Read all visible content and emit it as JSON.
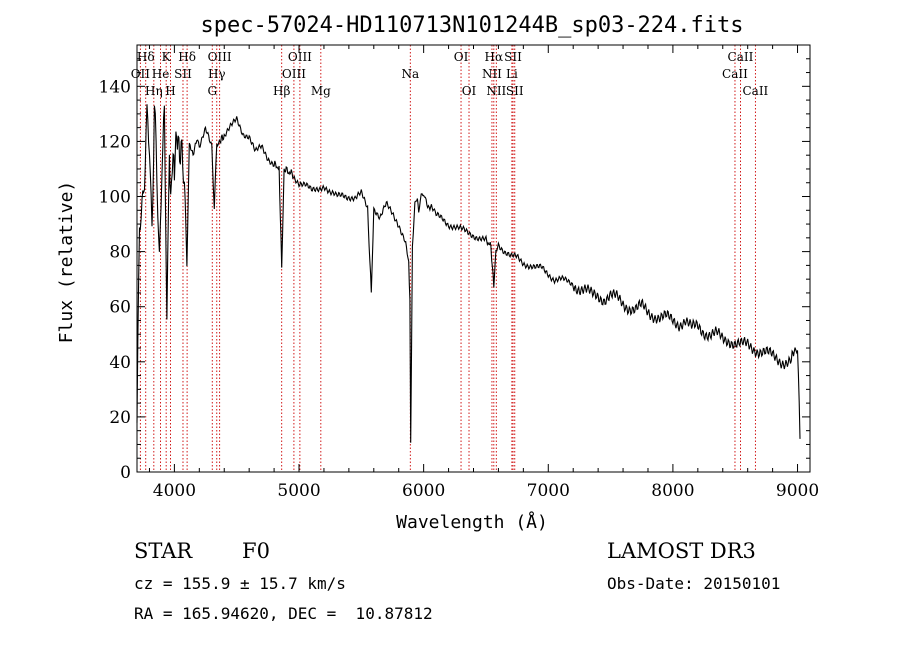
{
  "chart_data": {
    "type": "line",
    "title": "spec-57024-HD110713N101244B_sp03-224.fits",
    "xlabel": "Wavelength (Å)",
    "ylabel": "Flux (relative)",
    "xlim": [
      3700,
      9100
    ],
    "ylim": [
      0,
      155
    ],
    "xticks": [
      4000,
      5000,
      6000,
      7000,
      8000,
      9000
    ],
    "xtick_labels": [
      "4000",
      "5000",
      "6000",
      "7000",
      "8000",
      "9000"
    ],
    "yticks": [
      0,
      20,
      40,
      60,
      80,
      100,
      120,
      140
    ],
    "ytick_labels": [
      "0",
      "20",
      "40",
      "60",
      "80",
      "100",
      "120",
      "140"
    ],
    "series": [
      {
        "name": "spectrum",
        "x": [
          3700,
          3720,
          3740,
          3760,
          3780,
          3800,
          3820,
          3840,
          3860,
          3880,
          3900,
          3920,
          3940,
          3960,
          3970,
          3990,
          4000,
          4030,
          4060,
          4080,
          4100,
          4120,
          4150,
          4180,
          4200,
          4250,
          4300,
          4320,
          4340,
          4360,
          4400,
          4450,
          4500,
          4550,
          4600,
          4650,
          4700,
          4750,
          4800,
          4840,
          4861,
          4880,
          4950,
          5000,
          5050,
          5100,
          5150,
          5200,
          5250,
          5300,
          5350,
          5400,
          5450,
          5500,
          5550,
          5580,
          5600,
          5650,
          5700,
          5750,
          5800,
          5850,
          5880,
          5890,
          5896,
          5910,
          5930,
          5950,
          5960,
          5980,
          6000,
          6020,
          6050,
          6080,
          6100,
          6150,
          6200,
          6250,
          6300,
          6350,
          6400,
          6450,
          6500,
          6540,
          6563,
          6580,
          6600,
          6650,
          6700,
          6750,
          6800,
          6850,
          6900,
          6950,
          7000,
          7050,
          7100,
          7150,
          7200,
          7250,
          7300,
          7350,
          7400,
          7450,
          7500,
          7550,
          7600,
          7650,
          7700,
          7750,
          7800,
          7850,
          7900,
          7950,
          8000,
          8050,
          8100,
          8150,
          8200,
          8250,
          8300,
          8350,
          8400,
          8450,
          8500,
          8550,
          8600,
          8650,
          8700,
          8750,
          8800,
          8850,
          8900,
          8950,
          8980,
          9000,
          9020
        ],
        "y": [
          20,
          85,
          98,
          110,
          125,
          118,
          92,
          130,
          105,
          80,
          112,
          125,
          60,
          118,
          95,
          115,
          110,
          122,
          116,
          110,
          75,
          118,
          116,
          120,
          118,
          124,
          118,
          95,
          120,
          120,
          122,
          125,
          128,
          123,
          122,
          116,
          118,
          114,
          112,
          110,
          75,
          110,
          108,
          105,
          104,
          102,
          103,
          104,
          101,
          100,
          101,
          100,
          99,
          101,
          96,
          65,
          96,
          92,
          97,
          94,
          90,
          84,
          76,
          62,
          10,
          82,
          98,
          100,
          94,
          100,
          102,
          98,
          96,
          95,
          93,
          92,
          90,
          89,
          88,
          87,
          86,
          85,
          84,
          82,
          67,
          81,
          83,
          80,
          78,
          78,
          76,
          75,
          74,
          74,
          72,
          70,
          70,
          69,
          68,
          67,
          66,
          64,
          64,
          63,
          64,
          63,
          61,
          60,
          59,
          60,
          58,
          57,
          56,
          56,
          55,
          54,
          55,
          52,
          53,
          51,
          50,
          50,
          48,
          48,
          47,
          46,
          46,
          45,
          44,
          43,
          42,
          41,
          40,
          40,
          45,
          44,
          12
        ]
      }
    ],
    "line_labels": [
      {
        "label": "Hδ",
        "wl": 3770,
        "row": 1
      },
      {
        "label": "OII",
        "wl": 3727,
        "row": 2
      },
      {
        "label": "Hη",
        "wl": 3835,
        "row": 3
      },
      {
        "label": "He",
        "wl": 3889,
        "row": 2
      },
      {
        "label": "K",
        "wl": 3934,
        "row": 1
      },
      {
        "label": "SII",
        "wl": 4069,
        "row": 2
      },
      {
        "label": "H",
        "wl": 3969,
        "row": 3
      },
      {
        "label": "Hδ",
        "wl": 4102,
        "row": 1
      },
      {
        "label": "OIII",
        "wl": 4363,
        "row": 1
      },
      {
        "label": "Hγ",
        "wl": 4340,
        "row": 2
      },
      {
        "label": "G",
        "wl": 4304,
        "row": 3
      },
      {
        "label": "OIII",
        "wl": 5007,
        "row": 1
      },
      {
        "label": "OIII",
        "wl": 4959,
        "row": 2
      },
      {
        "label": "Hβ",
        "wl": 4861,
        "row": 3
      },
      {
        "label": "Mg",
        "wl": 5175,
        "row": 3
      },
      {
        "label": "Na",
        "wl": 5893,
        "row": 2
      },
      {
        "label": "OI",
        "wl": 6300,
        "row": 1
      },
      {
        "label": "OI",
        "wl": 6364,
        "row": 3
      },
      {
        "label": "Hα",
        "wl": 6563,
        "row": 1
      },
      {
        "label": "NII",
        "wl": 6548,
        "row": 2
      },
      {
        "label": "NII",
        "wl": 6583,
        "row": 3
      },
      {
        "label": "SII",
        "wl": 6717,
        "row": 1
      },
      {
        "label": "Li",
        "wl": 6708,
        "row": 2
      },
      {
        "label": "SII",
        "wl": 6731,
        "row": 3
      },
      {
        "label": "CaII",
        "wl": 8542,
        "row": 1
      },
      {
        "label": "CaII",
        "wl": 8498,
        "row": 2
      },
      {
        "label": "CaII",
        "wl": 8662,
        "row": 3
      }
    ],
    "line_marker_color": "#cc0000",
    "curve_color": "#000000"
  },
  "info": {
    "object_class": "STAR",
    "subclass": "F0",
    "survey": "LAMOST DR3",
    "redshift": "cz = 155.9 ± 15.7 km/s",
    "obs_date": "Obs-Date: 20150101",
    "coords": "RA = 165.94620, DEC =  10.87812"
  }
}
